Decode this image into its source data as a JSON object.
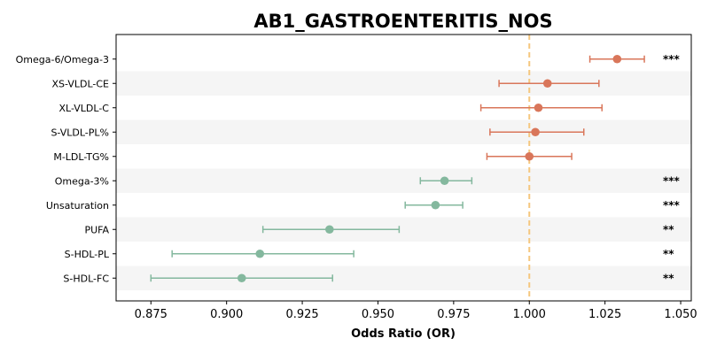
{
  "chart_data": {
    "type": "forest",
    "title": "AB1_GASTROENTERITIS_NOS",
    "xlabel": "Odds Ratio (OR)",
    "ylabel": "",
    "xlim": [
      0.8635,
      1.0535
    ],
    "xticks": [
      "0.875",
      "0.900",
      "0.925",
      "0.950",
      "0.975",
      "1.000",
      "1.025",
      "1.050"
    ],
    "reference_line": 1.0,
    "colors": {
      "positive": "#d9765a",
      "negative": "#84b89e",
      "reference": "#f5c77e",
      "band": "#f5f5f5"
    },
    "rows": [
      {
        "label": "Omega-6/Omega-3",
        "or": 1.029,
        "lo": 1.02,
        "hi": 1.038,
        "sig": "***",
        "group": "positive"
      },
      {
        "label": "XS-VLDL-CE",
        "or": 1.006,
        "lo": 0.99,
        "hi": 1.023,
        "sig": "",
        "group": "positive"
      },
      {
        "label": "XL-VLDL-C",
        "or": 1.003,
        "lo": 0.984,
        "hi": 1.024,
        "sig": "",
        "group": "positive"
      },
      {
        "label": "S-VLDL-PL%",
        "or": 1.002,
        "lo": 0.987,
        "hi": 1.018,
        "sig": "",
        "group": "positive"
      },
      {
        "label": "M-LDL-TG%",
        "or": 1.0,
        "lo": 0.986,
        "hi": 1.014,
        "sig": "",
        "group": "positive"
      },
      {
        "label": "Omega-3%",
        "or": 0.972,
        "lo": 0.964,
        "hi": 0.981,
        "sig": "***",
        "group": "negative"
      },
      {
        "label": "Unsaturation",
        "or": 0.969,
        "lo": 0.959,
        "hi": 0.978,
        "sig": "***",
        "group": "negative"
      },
      {
        "label": "PUFA",
        "or": 0.934,
        "lo": 0.912,
        "hi": 0.957,
        "sig": "**",
        "group": "negative"
      },
      {
        "label": "S-HDL-PL",
        "or": 0.911,
        "lo": 0.882,
        "hi": 0.942,
        "sig": "**",
        "group": "negative"
      },
      {
        "label": "S-HDL-FC",
        "or": 0.905,
        "lo": 0.875,
        "hi": 0.935,
        "sig": "**",
        "group": "negative"
      }
    ]
  }
}
